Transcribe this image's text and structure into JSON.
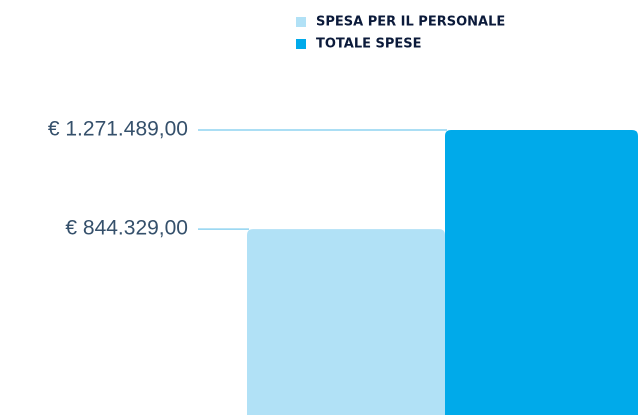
{
  "chart_data": {
    "type": "bar",
    "series": [
      {
        "name": "SPESA PER IL PERSONALE",
        "color": "#b1e1f6",
        "values": [
          844329
        ],
        "value_labels": [
          "€ 844.329,00"
        ]
      },
      {
        "name": "TOTALE SPESE",
        "color": "#00aaea",
        "values": [
          1271489
        ],
        "value_labels": [
          "€ 1.271.489,00"
        ]
      }
    ]
  }
}
